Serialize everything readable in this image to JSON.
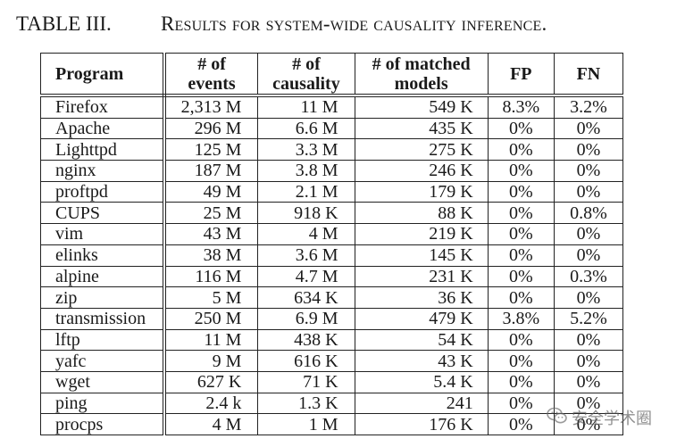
{
  "caption": {
    "label": "TABLE III.",
    "title_first": "R",
    "title_rest": "esults for system-wide causality inference."
  },
  "table": {
    "headers": {
      "program": "Program",
      "events_line1": "# of",
      "events_line2": "events",
      "causality_line1": "# of",
      "causality_line2": "causality",
      "models_line1": "# of matched",
      "models_line2": "models",
      "fp": "FP",
      "fn": "FN"
    },
    "rows": [
      {
        "program": "Firefox",
        "events": "2,313 M",
        "causality": "11 M",
        "models": "549 K",
        "fp": "8.3%",
        "fn": "3.2%"
      },
      {
        "program": "Apache",
        "events": "296 M",
        "causality": "6.6 M",
        "models": "435 K",
        "fp": "0%",
        "fn": "0%"
      },
      {
        "program": "Lighttpd",
        "events": "125 M",
        "causality": "3.3 M",
        "models": "275 K",
        "fp": "0%",
        "fn": "0%"
      },
      {
        "program": "nginx",
        "events": "187 M",
        "causality": "3.8 M",
        "models": "246 K",
        "fp": "0%",
        "fn": "0%"
      },
      {
        "program": "proftpd",
        "events": "49 M",
        "causality": "2.1 M",
        "models": "179 K",
        "fp": "0%",
        "fn": "0%"
      },
      {
        "program": "CUPS",
        "events": "25 M",
        "causality": "918 K",
        "models": "88 K",
        "fp": "0%",
        "fn": "0.8%"
      },
      {
        "program": "vim",
        "events": "43 M",
        "causality": "4 M",
        "models": "219 K",
        "fp": "0%",
        "fn": "0%"
      },
      {
        "program": "elinks",
        "events": "38 M",
        "causality": "3.6 M",
        "models": "145 K",
        "fp": "0%",
        "fn": "0%"
      },
      {
        "program": "alpine",
        "events": "116 M",
        "causality": "4.7 M",
        "models": "231 K",
        "fp": "0%",
        "fn": "0.3%"
      },
      {
        "program": "zip",
        "events": "5 M",
        "causality": "634 K",
        "models": "36 K",
        "fp": "0%",
        "fn": "0%"
      },
      {
        "program": "transmission",
        "events": "250 M",
        "causality": "6.9 M",
        "models": "479 K",
        "fp": "3.8%",
        "fn": "5.2%"
      },
      {
        "program": "lftp",
        "events": "11 M",
        "causality": "438 K",
        "models": "54 K",
        "fp": "0%",
        "fn": "0%"
      },
      {
        "program": "yafc",
        "events": "9 M",
        "causality": "616 K",
        "models": "43 K",
        "fp": "0%",
        "fn": "0%"
      },
      {
        "program": "wget",
        "events": "627 K",
        "causality": "71 K",
        "models": "5.4 K",
        "fp": "0%",
        "fn": "0%"
      },
      {
        "program": "ping",
        "events": "2.4 k",
        "causality": "1.3 K",
        "models": "241",
        "fp": "0%",
        "fn": "0%"
      },
      {
        "program": "procps",
        "events": "4 M",
        "causality": "1 M",
        "models": "176 K",
        "fp": "0%",
        "fn": "0%"
      }
    ]
  },
  "watermark": {
    "icon": "wechat-icon",
    "text": "安全学术圈"
  }
}
